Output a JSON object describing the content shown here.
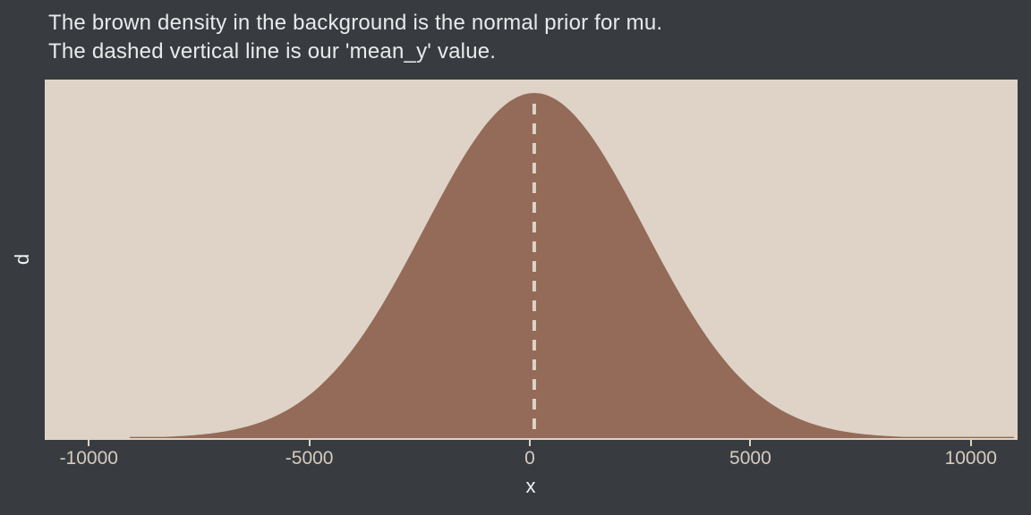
{
  "title": {
    "line1": "The brown density in the background is the normal prior for mu.",
    "line2": "The dashed vertical line is our 'mean_y' value."
  },
  "chart_data": {
    "type": "area",
    "subtype": "density",
    "title": "The brown density in the background is the normal prior for mu. The dashed vertical line is our 'mean_y' value.",
    "xlabel": "x",
    "ylabel": "d",
    "x_range": [
      -11000,
      11060
    ],
    "x_ticks": [
      -10000,
      -5000,
      0,
      5000,
      10000
    ],
    "x_tick_labels": [
      "-10000",
      "-5000",
      "0",
      "5000",
      "10000"
    ],
    "y_axis": {
      "ticks_visible": false,
      "min": 0,
      "peak_density": 0.00015958
    },
    "series": [
      {
        "name": "normal prior for mu",
        "distribution": "normal",
        "mean": 100,
        "sd": 2500,
        "fill_color": "#946b58"
      }
    ],
    "vline": {
      "x": 100,
      "meaning": "mean_y",
      "style": "dashed",
      "color": "#ddd3c6"
    },
    "grid": false,
    "legend": false,
    "colors": {
      "background": "#383c41",
      "panel_background": "#ded3c6",
      "density_fill": "#946b58",
      "dashed_line": "#ddd3c6",
      "title_text": "#e9eaea",
      "tick_text": "#d6cbbd",
      "axis_label_text": "#f2f2f2"
    }
  }
}
